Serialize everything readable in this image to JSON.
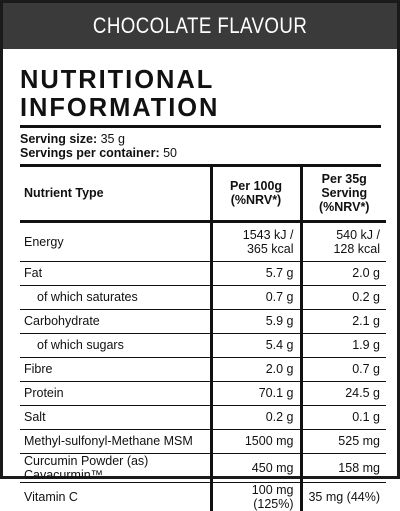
{
  "header": {
    "flavour": "CHOCOLATE FLAVOUR"
  },
  "title": "NUTRITIONAL INFORMATION",
  "serving": {
    "size_label": "Serving size:",
    "size_value": "35 g",
    "per_container_label": "Servings per container:",
    "per_container_value": "50"
  },
  "table": {
    "col_nutrient": "Nutrient Type",
    "col_per100_l1": "Per 100g",
    "col_per100_l2": "(%NRV*)",
    "col_serving_l1": "Per 35g",
    "col_serving_l2": "Serving",
    "col_serving_l3": "(%NRV*)",
    "rows": [
      {
        "name": "Energy",
        "per100_l1": "1543 kJ /",
        "per100_l2": "365 kcal",
        "serving_l1": "540 kJ /",
        "serving_l2": "128 kcal"
      },
      {
        "name": "Fat",
        "per100": "5.7 g",
        "serving": "2.0 g"
      },
      {
        "name": "of which saturates",
        "per100": "0.7 g",
        "serving": "0.2 g"
      },
      {
        "name": "Carbohydrate",
        "per100": "5.9 g",
        "serving": "2.1 g"
      },
      {
        "name": "of which sugars",
        "per100": "5.4 g",
        "serving": "1.9 g"
      },
      {
        "name": "Fibre",
        "per100": "2.0 g",
        "serving": "0.7 g"
      },
      {
        "name": "Protein",
        "per100": "70.1 g",
        "serving": "24.5 g"
      },
      {
        "name": "Salt",
        "per100": "0.2 g",
        "serving": "0.1 g"
      },
      {
        "name": "Methyl-sulfonyl-Methane MSM",
        "per100": "1500 mg",
        "serving": "525 mg"
      },
      {
        "name": "Curcumin Powder (as) Cavacurmin™",
        "per100": "450 mg",
        "serving": "158 mg"
      },
      {
        "name": "Vitamin C",
        "per100": "100 mg (125%)",
        "serving": "35 mg (44%)"
      }
    ]
  }
}
